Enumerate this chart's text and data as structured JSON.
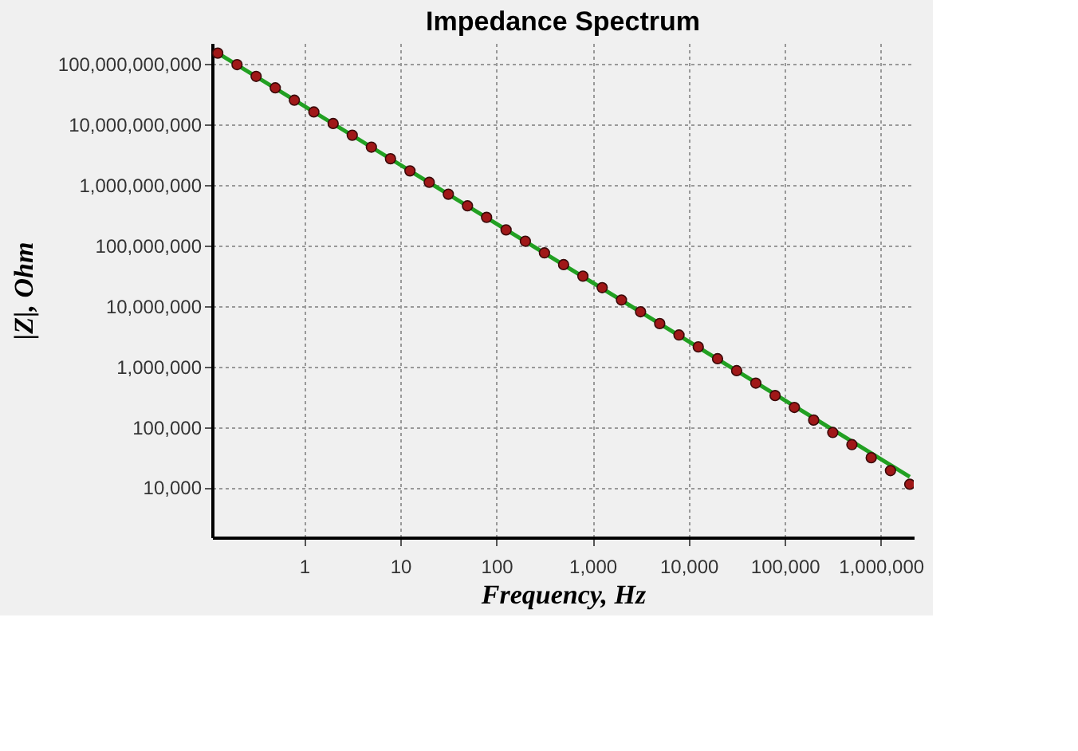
{
  "chart_data": {
    "type": "scatter",
    "title": "Impedance Spectrum",
    "xlabel": "Frequency, Hz",
    "ylabel": "|Z|, Ohm",
    "log": "xy",
    "grid": true,
    "x": [
      0.126,
      0.2,
      0.316,
      0.5,
      0.79,
      1.26,
      2,
      3.16,
      5,
      7.9,
      12.6,
      20,
      31.6,
      50,
      79,
      126,
      200,
      316,
      500,
      794,
      1260,
      2000,
      3160,
      5000,
      7940,
      12600,
      20000,
      31600,
      50000,
      79400,
      126000,
      200000,
      316000,
      500000,
      794000,
      1260000,
      2000000
    ],
    "series": [
      {
        "type": "line",
        "marker": "none",
        "line_style": "solid",
        "color": "#22a022",
        "x": [
          0.126,
          2000000
        ],
        "values": [
          150000000000,
          15000
        ]
      },
      {
        "marker": "circle",
        "color": "#a01818",
        "values": [
          150000000000,
          97000000000,
          62000000000,
          40000000000,
          25000000000,
          16000000000,
          10300000000,
          6600000000,
          4200000000,
          2700000000,
          1700000000,
          1100000000,
          700000000,
          450000000,
          290000000,
          180000000,
          117000000,
          75000000,
          48000000,
          31000000,
          20000000,
          12500000,
          8000000,
          5100000,
          3300000,
          2100000,
          1340000,
          850000,
          530000,
          330000,
          210000,
          130000,
          81000,
          51000,
          31000,
          19000,
          11300
        ]
      }
    ],
    "xlim": [
      0.11,
      2200000
    ],
    "ylim": [
      1500,
      220000000000
    ],
    "xticks": [
      1,
      10,
      100,
      {
        "value": 1000,
        "label": "1,000"
      },
      {
        "value": 10000,
        "label": "10,000"
      },
      {
        "value": 100000,
        "label": "100,000"
      },
      {
        "value": 1000000,
        "label": "1,000,000"
      }
    ],
    "yticks": [
      {
        "value": 10000,
        "label": "10,000"
      },
      {
        "value": 100000,
        "label": "100,000"
      },
      {
        "value": 1000000,
        "label": "1,000,000"
      },
      {
        "value": 10000000,
        "label": "10,000,000"
      },
      {
        "value": 100000000,
        "label": "100,000,000"
      },
      {
        "value": 1000000000,
        "label": "1,000,000,000"
      },
      {
        "value": 10000000000,
        "label": "10,000,000,000"
      },
      {
        "value": 100000000000,
        "label": "100,000,000,000"
      }
    ]
  }
}
